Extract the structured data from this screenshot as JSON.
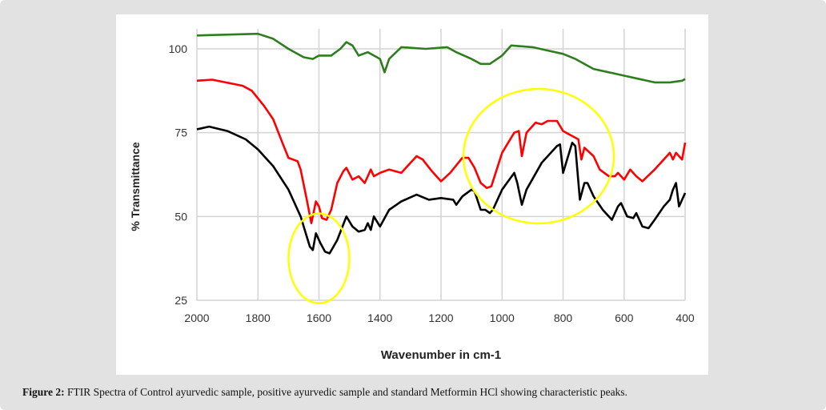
{
  "chart_data": {
    "type": "line",
    "title": "",
    "xlabel": "Wavenumber in cm-1",
    "ylabel": "% Transmittance",
    "xlim": [
      2000,
      400
    ],
    "ylim": [
      25,
      110
    ],
    "xticks": [
      2000,
      1800,
      1600,
      1400,
      1200,
      1000,
      800,
      600,
      400
    ],
    "yticks": [
      25,
      50,
      75,
      100
    ],
    "grid": true,
    "legend": "none",
    "series": [
      {
        "name": "green",
        "color": "#2e7d1e",
        "points": [
          [
            2000,
            104
          ],
          [
            1800,
            104.5
          ],
          [
            1750,
            103
          ],
          [
            1700,
            100
          ],
          [
            1650,
            97.5
          ],
          [
            1620,
            97
          ],
          [
            1600,
            98
          ],
          [
            1560,
            98
          ],
          [
            1530,
            100
          ],
          [
            1510,
            102
          ],
          [
            1490,
            101
          ],
          [
            1470,
            98
          ],
          [
            1440,
            99
          ],
          [
            1400,
            97
          ],
          [
            1385,
            93
          ],
          [
            1370,
            97
          ],
          [
            1330,
            100.5
          ],
          [
            1250,
            100
          ],
          [
            1180,
            100.5
          ],
          [
            1150,
            99
          ],
          [
            1100,
            97
          ],
          [
            1070,
            95.5
          ],
          [
            1040,
            95.5
          ],
          [
            1000,
            98
          ],
          [
            970,
            101
          ],
          [
            900,
            100.5
          ],
          [
            850,
            99.5
          ],
          [
            800,
            98.5
          ],
          [
            760,
            97
          ],
          [
            700,
            94
          ],
          [
            650,
            93
          ],
          [
            600,
            92
          ],
          [
            550,
            91
          ],
          [
            500,
            90
          ],
          [
            450,
            90
          ],
          [
            410,
            90.5
          ],
          [
            400,
            91
          ]
        ]
      },
      {
        "name": "red",
        "color": "#ff0000",
        "points": [
          [
            2000,
            90.5
          ],
          [
            1950,
            90.8
          ],
          [
            1850,
            89
          ],
          [
            1820,
            87.5
          ],
          [
            1780,
            83
          ],
          [
            1750,
            79
          ],
          [
            1720,
            72
          ],
          [
            1700,
            67.5
          ],
          [
            1670,
            66.5
          ],
          [
            1660,
            64
          ],
          [
            1640,
            55
          ],
          [
            1625,
            48
          ],
          [
            1610,
            54.5
          ],
          [
            1600,
            53
          ],
          [
            1590,
            49.5
          ],
          [
            1575,
            49
          ],
          [
            1560,
            52
          ],
          [
            1540,
            60
          ],
          [
            1520,
            63.5
          ],
          [
            1510,
            64.5
          ],
          [
            1490,
            61
          ],
          [
            1470,
            62
          ],
          [
            1450,
            60
          ],
          [
            1430,
            64
          ],
          [
            1420,
            62
          ],
          [
            1400,
            63
          ],
          [
            1370,
            64
          ],
          [
            1330,
            63
          ],
          [
            1280,
            68
          ],
          [
            1260,
            67
          ],
          [
            1230,
            63.5
          ],
          [
            1200,
            60.5
          ],
          [
            1170,
            63
          ],
          [
            1130,
            67.5
          ],
          [
            1110,
            67.5
          ],
          [
            1090,
            64.5
          ],
          [
            1070,
            60
          ],
          [
            1050,
            58.5
          ],
          [
            1035,
            59
          ],
          [
            1000,
            69
          ],
          [
            960,
            75
          ],
          [
            945,
            75.5
          ],
          [
            935,
            68
          ],
          [
            920,
            75
          ],
          [
            890,
            78
          ],
          [
            870,
            77.5
          ],
          [
            850,
            78.5
          ],
          [
            820,
            78.5
          ],
          [
            800,
            75.5
          ],
          [
            770,
            74
          ],
          [
            750,
            73
          ],
          [
            740,
            67
          ],
          [
            730,
            70.5
          ],
          [
            700,
            68
          ],
          [
            680,
            64
          ],
          [
            650,
            62
          ],
          [
            630,
            62
          ],
          [
            620,
            63
          ],
          [
            600,
            61
          ],
          [
            580,
            64
          ],
          [
            560,
            62
          ],
          [
            540,
            60.5
          ],
          [
            500,
            64
          ],
          [
            460,
            68
          ],
          [
            450,
            69
          ],
          [
            440,
            67
          ],
          [
            430,
            69
          ],
          [
            410,
            67
          ],
          [
            400,
            72
          ]
        ]
      },
      {
        "name": "black",
        "color": "#000000",
        "points": [
          [
            2000,
            76
          ],
          [
            1960,
            76.8
          ],
          [
            1900,
            75.5
          ],
          [
            1840,
            73
          ],
          [
            1800,
            70
          ],
          [
            1750,
            65
          ],
          [
            1700,
            58
          ],
          [
            1660,
            50
          ],
          [
            1630,
            41
          ],
          [
            1620,
            40
          ],
          [
            1610,
            45
          ],
          [
            1595,
            42
          ],
          [
            1580,
            39.5
          ],
          [
            1565,
            39
          ],
          [
            1540,
            43
          ],
          [
            1510,
            50
          ],
          [
            1490,
            47
          ],
          [
            1470,
            45.5
          ],
          [
            1450,
            46
          ],
          [
            1440,
            48
          ],
          [
            1430,
            46
          ],
          [
            1420,
            50
          ],
          [
            1400,
            47
          ],
          [
            1370,
            52
          ],
          [
            1330,
            54.5
          ],
          [
            1280,
            56.5
          ],
          [
            1240,
            55
          ],
          [
            1200,
            55.5
          ],
          [
            1160,
            55
          ],
          [
            1150,
            53.5
          ],
          [
            1130,
            56
          ],
          [
            1100,
            58
          ],
          [
            1090,
            57.5
          ],
          [
            1070,
            52
          ],
          [
            1055,
            52
          ],
          [
            1040,
            51
          ],
          [
            1030,
            52
          ],
          [
            1000,
            58
          ],
          [
            960,
            63
          ],
          [
            950,
            60
          ],
          [
            935,
            53.5
          ],
          [
            920,
            58
          ],
          [
            870,
            66
          ],
          [
            820,
            71
          ],
          [
            810,
            71.5
          ],
          [
            800,
            63
          ],
          [
            790,
            66
          ],
          [
            770,
            72
          ],
          [
            760,
            71
          ],
          [
            745,
            55
          ],
          [
            730,
            60
          ],
          [
            720,
            60
          ],
          [
            700,
            56
          ],
          [
            670,
            52
          ],
          [
            640,
            49
          ],
          [
            620,
            53
          ],
          [
            610,
            54
          ],
          [
            590,
            50
          ],
          [
            570,
            49.5
          ],
          [
            560,
            51
          ],
          [
            540,
            47
          ],
          [
            520,
            46.5
          ],
          [
            500,
            49
          ],
          [
            470,
            53
          ],
          [
            450,
            55
          ],
          [
            440,
            58
          ],
          [
            430,
            60
          ],
          [
            420,
            53
          ],
          [
            400,
            57
          ]
        ]
      }
    ],
    "annotations": [
      {
        "shape": "ellipse",
        "color": "#ffff00",
        "center": [
          1600,
          37.5
        ]
      },
      {
        "shape": "ellipse",
        "color": "#ffff00",
        "center": [
          880,
          68
        ]
      }
    ]
  },
  "caption": {
    "label": "Figure 2:",
    "text": " FTIR Spectra of Control ayurvedic sample, positive ayurvedic sample and standard Metformin HCl showing characteristic peaks."
  }
}
